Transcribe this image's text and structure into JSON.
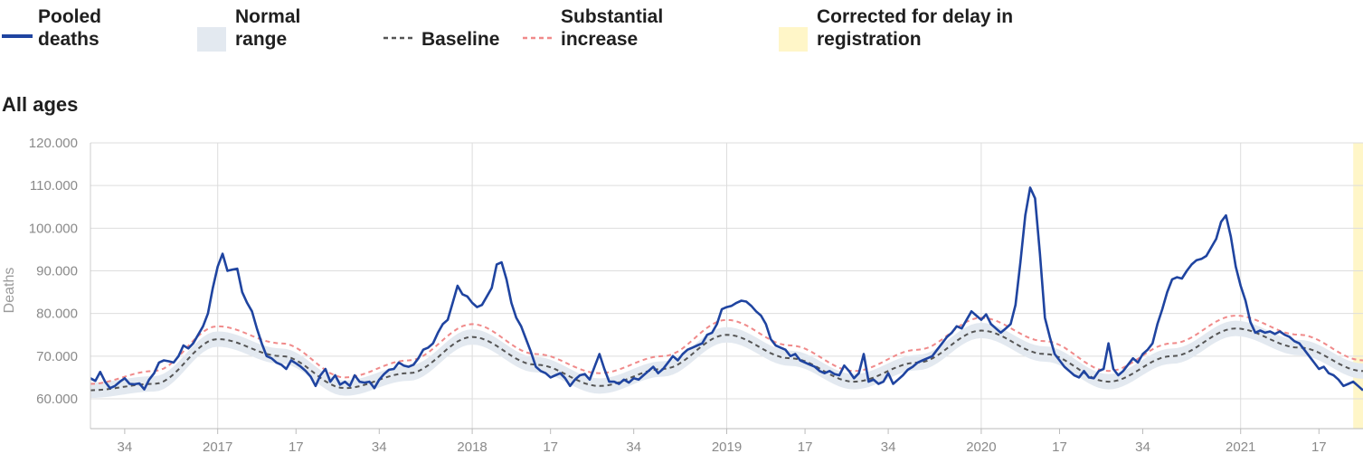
{
  "legend": {
    "pooled": "Pooled deaths",
    "normal": "Normal range",
    "baseline": "Baseline",
    "substantial": "Substantial increase",
    "corrected": "Corrected for delay in registration"
  },
  "colors": {
    "pooled": "#1f44a0",
    "normal_band": "#e3e9f0",
    "baseline": "#555555",
    "substantial": "#f08a8a",
    "corrected": "#fff6c8",
    "grid": "#dddddd"
  },
  "chart_data": {
    "type": "line",
    "title": "All ages",
    "ylabel": "Deaths",
    "xlabel": "",
    "ylim": [
      53000,
      120000
    ],
    "y_ticks": [
      60000,
      70000,
      80000,
      90000,
      100000,
      110000,
      120000
    ],
    "y_tick_labels": [
      "60.000",
      "70.000",
      "80.000",
      "90.000",
      "100.000",
      "110.000",
      "120.000"
    ],
    "x_axis": "ISO week, 2016 week 27 – 2021 week 26",
    "x_ticks": [
      {
        "label": "34",
        "index": 7
      },
      {
        "label": "2017",
        "index": 26
      },
      {
        "label": "17",
        "index": 42
      },
      {
        "label": "34",
        "index": 59
      },
      {
        "label": "2018",
        "index": 78
      },
      {
        "label": "17",
        "index": 94
      },
      {
        "label": "34",
        "index": 111
      },
      {
        "label": "2019",
        "index": 130
      },
      {
        "label": "17",
        "index": 146
      },
      {
        "label": "34",
        "index": 163
      },
      {
        "label": "2020",
        "index": 182
      },
      {
        "label": "17",
        "index": 198
      },
      {
        "label": "34",
        "index": 215
      },
      {
        "label": "2021",
        "index": 235
      },
      {
        "label": "17",
        "index": 251
      }
    ],
    "x_count": 261,
    "corrected_from_index": 258,
    "pooled_anchors": [
      [
        0,
        64800
      ],
      [
        1,
        64200
      ],
      [
        2,
        66300
      ],
      [
        3,
        64000
      ],
      [
        4,
        62500
      ],
      [
        5,
        63000
      ],
      [
        6,
        64000
      ],
      [
        7,
        64800
      ],
      [
        8,
        63500
      ],
      [
        9,
        63400
      ],
      [
        10,
        63600
      ],
      [
        11,
        62200
      ],
      [
        12,
        64500
      ],
      [
        13,
        66000
      ],
      [
        14,
        68500
      ],
      [
        15,
        69000
      ],
      [
        16,
        68800
      ],
      [
        17,
        68500
      ],
      [
        18,
        70000
      ],
      [
        19,
        72500
      ],
      [
        20,
        71800
      ],
      [
        21,
        73000
      ],
      [
        22,
        75000
      ],
      [
        23,
        77000
      ],
      [
        24,
        80000
      ],
      [
        25,
        86000
      ],
      [
        26,
        91000
      ],
      [
        27,
        94000
      ],
      [
        28,
        90000
      ],
      [
        29,
        90300
      ],
      [
        30,
        90500
      ],
      [
        31,
        85000
      ],
      [
        32,
        82500
      ],
      [
        33,
        80500
      ],
      [
        34,
        76500
      ],
      [
        35,
        73000
      ],
      [
        36,
        70000
      ],
      [
        37,
        69500
      ],
      [
        38,
        68500
      ],
      [
        39,
        68000
      ],
      [
        40,
        67000
      ],
      [
        41,
        69000
      ],
      [
        42,
        68300
      ],
      [
        43,
        67500
      ],
      [
        44,
        66500
      ],
      [
        45,
        65200
      ],
      [
        46,
        63000
      ],
      [
        47,
        65500
      ],
      [
        48,
        67000
      ],
      [
        49,
        64000
      ],
      [
        50,
        65500
      ],
      [
        51,
        63300
      ],
      [
        52,
        64000
      ],
      [
        53,
        63000
      ],
      [
        54,
        65500
      ],
      [
        55,
        64000
      ],
      [
        56,
        63800
      ],
      [
        57,
        64000
      ],
      [
        58,
        62500
      ],
      [
        59,
        64500
      ],
      [
        60,
        65800
      ],
      [
        61,
        66800
      ],
      [
        62,
        67000
      ],
      [
        63,
        68500
      ],
      [
        64,
        67800
      ],
      [
        65,
        67500
      ],
      [
        66,
        68000
      ],
      [
        67,
        69500
      ],
      [
        68,
        71500
      ],
      [
        69,
        72000
      ],
      [
        70,
        73000
      ],
      [
        71,
        75500
      ],
      [
        72,
        77500
      ],
      [
        73,
        78500
      ],
      [
        74,
        82500
      ],
      [
        75,
        86500
      ],
      [
        76,
        84500
      ],
      [
        77,
        84000
      ],
      [
        78,
        82500
      ],
      [
        79,
        81500
      ],
      [
        80,
        82000
      ],
      [
        81,
        84000
      ],
      [
        82,
        86000
      ],
      [
        83,
        91500
      ],
      [
        84,
        92000
      ],
      [
        85,
        88000
      ],
      [
        86,
        82500
      ],
      [
        87,
        79000
      ],
      [
        88,
        77000
      ],
      [
        89,
        74000
      ],
      [
        90,
        71000
      ],
      [
        91,
        67500
      ],
      [
        92,
        66500
      ],
      [
        93,
        66000
      ],
      [
        94,
        65000
      ],
      [
        95,
        65500
      ],
      [
        96,
        66000
      ],
      [
        97,
        64800
      ],
      [
        98,
        63000
      ],
      [
        99,
        64500
      ],
      [
        100,
        65500
      ],
      [
        101,
        65800
      ],
      [
        102,
        64500
      ],
      [
        103,
        67500
      ],
      [
        104,
        70500
      ],
      [
        105,
        67000
      ],
      [
        106,
        64000
      ],
      [
        107,
        64000
      ],
      [
        108,
        63500
      ],
      [
        109,
        64500
      ],
      [
        110,
        63800
      ],
      [
        111,
        64800
      ],
      [
        112,
        64500
      ],
      [
        113,
        65500
      ],
      [
        114,
        66500
      ],
      [
        115,
        67500
      ],
      [
        116,
        66000
      ],
      [
        117,
        67000
      ],
      [
        118,
        68500
      ],
      [
        119,
        70000
      ],
      [
        120,
        69000
      ],
      [
        121,
        70500
      ],
      [
        122,
        71500
      ],
      [
        123,
        72000
      ],
      [
        124,
        72500
      ],
      [
        125,
        73000
      ],
      [
        126,
        75000
      ],
      [
        127,
        75500
      ],
      [
        128,
        77500
      ],
      [
        129,
        81000
      ],
      [
        130,
        81500
      ],
      [
        131,
        81800
      ],
      [
        132,
        82500
      ],
      [
        133,
        83000
      ],
      [
        134,
        82800
      ],
      [
        135,
        81800
      ],
      [
        136,
        80500
      ],
      [
        137,
        79500
      ],
      [
        138,
        77500
      ],
      [
        139,
        74000
      ],
      [
        140,
        72500
      ],
      [
        141,
        72000
      ],
      [
        142,
        71500
      ],
      [
        143,
        70000
      ],
      [
        144,
        70500
      ],
      [
        145,
        69000
      ],
      [
        146,
        68500
      ],
      [
        147,
        68000
      ],
      [
        148,
        67500
      ],
      [
        149,
        66500
      ],
      [
        150,
        66000
      ],
      [
        151,
        66500
      ],
      [
        152,
        65800
      ],
      [
        153,
        65500
      ],
      [
        154,
        67800
      ],
      [
        155,
        66500
      ],
      [
        156,
        64800
      ],
      [
        157,
        66000
      ],
      [
        158,
        70500
      ],
      [
        159,
        64000
      ],
      [
        160,
        64500
      ],
      [
        161,
        63500
      ],
      [
        162,
        64000
      ],
      [
        163,
        66000
      ],
      [
        164,
        63500
      ],
      [
        165,
        64500
      ],
      [
        166,
        65500
      ],
      [
        167,
        66800
      ],
      [
        168,
        67500
      ],
      [
        169,
        68500
      ],
      [
        170,
        69000
      ],
      [
        171,
        69500
      ],
      [
        172,
        70000
      ],
      [
        173,
        71500
      ],
      [
        174,
        73000
      ],
      [
        175,
        74500
      ],
      [
        176,
        75500
      ],
      [
        177,
        77000
      ],
      [
        178,
        76500
      ],
      [
        179,
        78500
      ],
      [
        180,
        80500
      ],
      [
        181,
        79500
      ],
      [
        182,
        78500
      ],
      [
        183,
        79800
      ],
      [
        184,
        77500
      ],
      [
        185,
        76500
      ],
      [
        186,
        75500
      ],
      [
        187,
        76500
      ],
      [
        188,
        77500
      ],
      [
        189,
        82000
      ],
      [
        190,
        92000
      ],
      [
        191,
        103000
      ],
      [
        192,
        109500
      ],
      [
        193,
        107000
      ],
      [
        194,
        94000
      ],
      [
        195,
        79000
      ],
      [
        196,
        74500
      ],
      [
        197,
        70500
      ],
      [
        198,
        69000
      ],
      [
        199,
        67500
      ],
      [
        200,
        66500
      ],
      [
        201,
        65500
      ],
      [
        202,
        65000
      ],
      [
        203,
        66500
      ],
      [
        204,
        65000
      ],
      [
        205,
        64800
      ],
      [
        206,
        66500
      ],
      [
        207,
        67000
      ],
      [
        208,
        73000
      ],
      [
        209,
        67000
      ],
      [
        210,
        65500
      ],
      [
        211,
        66500
      ],
      [
        212,
        68000
      ],
      [
        213,
        69500
      ],
      [
        214,
        68500
      ],
      [
        215,
        70500
      ],
      [
        216,
        71500
      ],
      [
        217,
        73000
      ],
      [
        218,
        77500
      ],
      [
        219,
        81000
      ],
      [
        220,
        85000
      ],
      [
        221,
        88000
      ],
      [
        222,
        88500
      ],
      [
        223,
        88200
      ],
      [
        224,
        90000
      ],
      [
        225,
        91500
      ],
      [
        226,
        92500
      ],
      [
        227,
        92800
      ],
      [
        228,
        93500
      ],
      [
        229,
        95500
      ],
      [
        230,
        97500
      ],
      [
        231,
        101500
      ],
      [
        232,
        103000
      ],
      [
        233,
        98000
      ],
      [
        234,
        91000
      ],
      [
        235,
        86500
      ],
      [
        236,
        83000
      ],
      [
        237,
        78000
      ],
      [
        238,
        75500
      ],
      [
        239,
        76000
      ],
      [
        240,
        75500
      ],
      [
        241,
        75800
      ],
      [
        242,
        75200
      ],
      [
        243,
        75800
      ],
      [
        244,
        75000
      ],
      [
        245,
        74500
      ],
      [
        246,
        73500
      ],
      [
        247,
        73000
      ],
      [
        248,
        71500
      ],
      [
        249,
        70000
      ],
      [
        250,
        68500
      ],
      [
        251,
        67000
      ],
      [
        252,
        67500
      ],
      [
        253,
        66000
      ],
      [
        254,
        65500
      ],
      [
        255,
        64500
      ],
      [
        256,
        63000
      ],
      [
        257,
        63500
      ],
      [
        258,
        64000
      ],
      [
        259,
        63000
      ],
      [
        260,
        62000
      ]
    ],
    "baseline_anchors": [
      [
        0,
        62000
      ],
      [
        13,
        63500
      ],
      [
        26,
        74000
      ],
      [
        39,
        70000
      ],
      [
        52,
        62500
      ],
      [
        65,
        66000
      ],
      [
        78,
        74500
      ],
      [
        91,
        68000
      ],
      [
        104,
        63000
      ],
      [
        117,
        67000
      ],
      [
        130,
        75000
      ],
      [
        143,
        69500
      ],
      [
        156,
        64000
      ],
      [
        169,
        68500
      ],
      [
        182,
        76000
      ],
      [
        195,
        70500
      ],
      [
        208,
        64000
      ],
      [
        221,
        70000
      ],
      [
        234,
        76500
      ],
      [
        247,
        72000
      ],
      [
        260,
        66500
      ]
    ],
    "band_halfwidth": 1800,
    "substantial_anchors": [
      [
        0,
        63500
      ],
      [
        13,
        66500
      ],
      [
        26,
        77000
      ],
      [
        39,
        73000
      ],
      [
        52,
        65000
      ],
      [
        65,
        69000
      ],
      [
        78,
        77500
      ],
      [
        91,
        70500
      ],
      [
        104,
        66000
      ],
      [
        117,
        70000
      ],
      [
        130,
        78500
      ],
      [
        143,
        72500
      ],
      [
        156,
        66500
      ],
      [
        169,
        71500
      ],
      [
        182,
        79000
      ],
      [
        195,
        73500
      ],
      [
        208,
        66500
      ],
      [
        221,
        73000
      ],
      [
        234,
        79500
      ],
      [
        247,
        75000
      ],
      [
        260,
        69000
      ]
    ]
  }
}
